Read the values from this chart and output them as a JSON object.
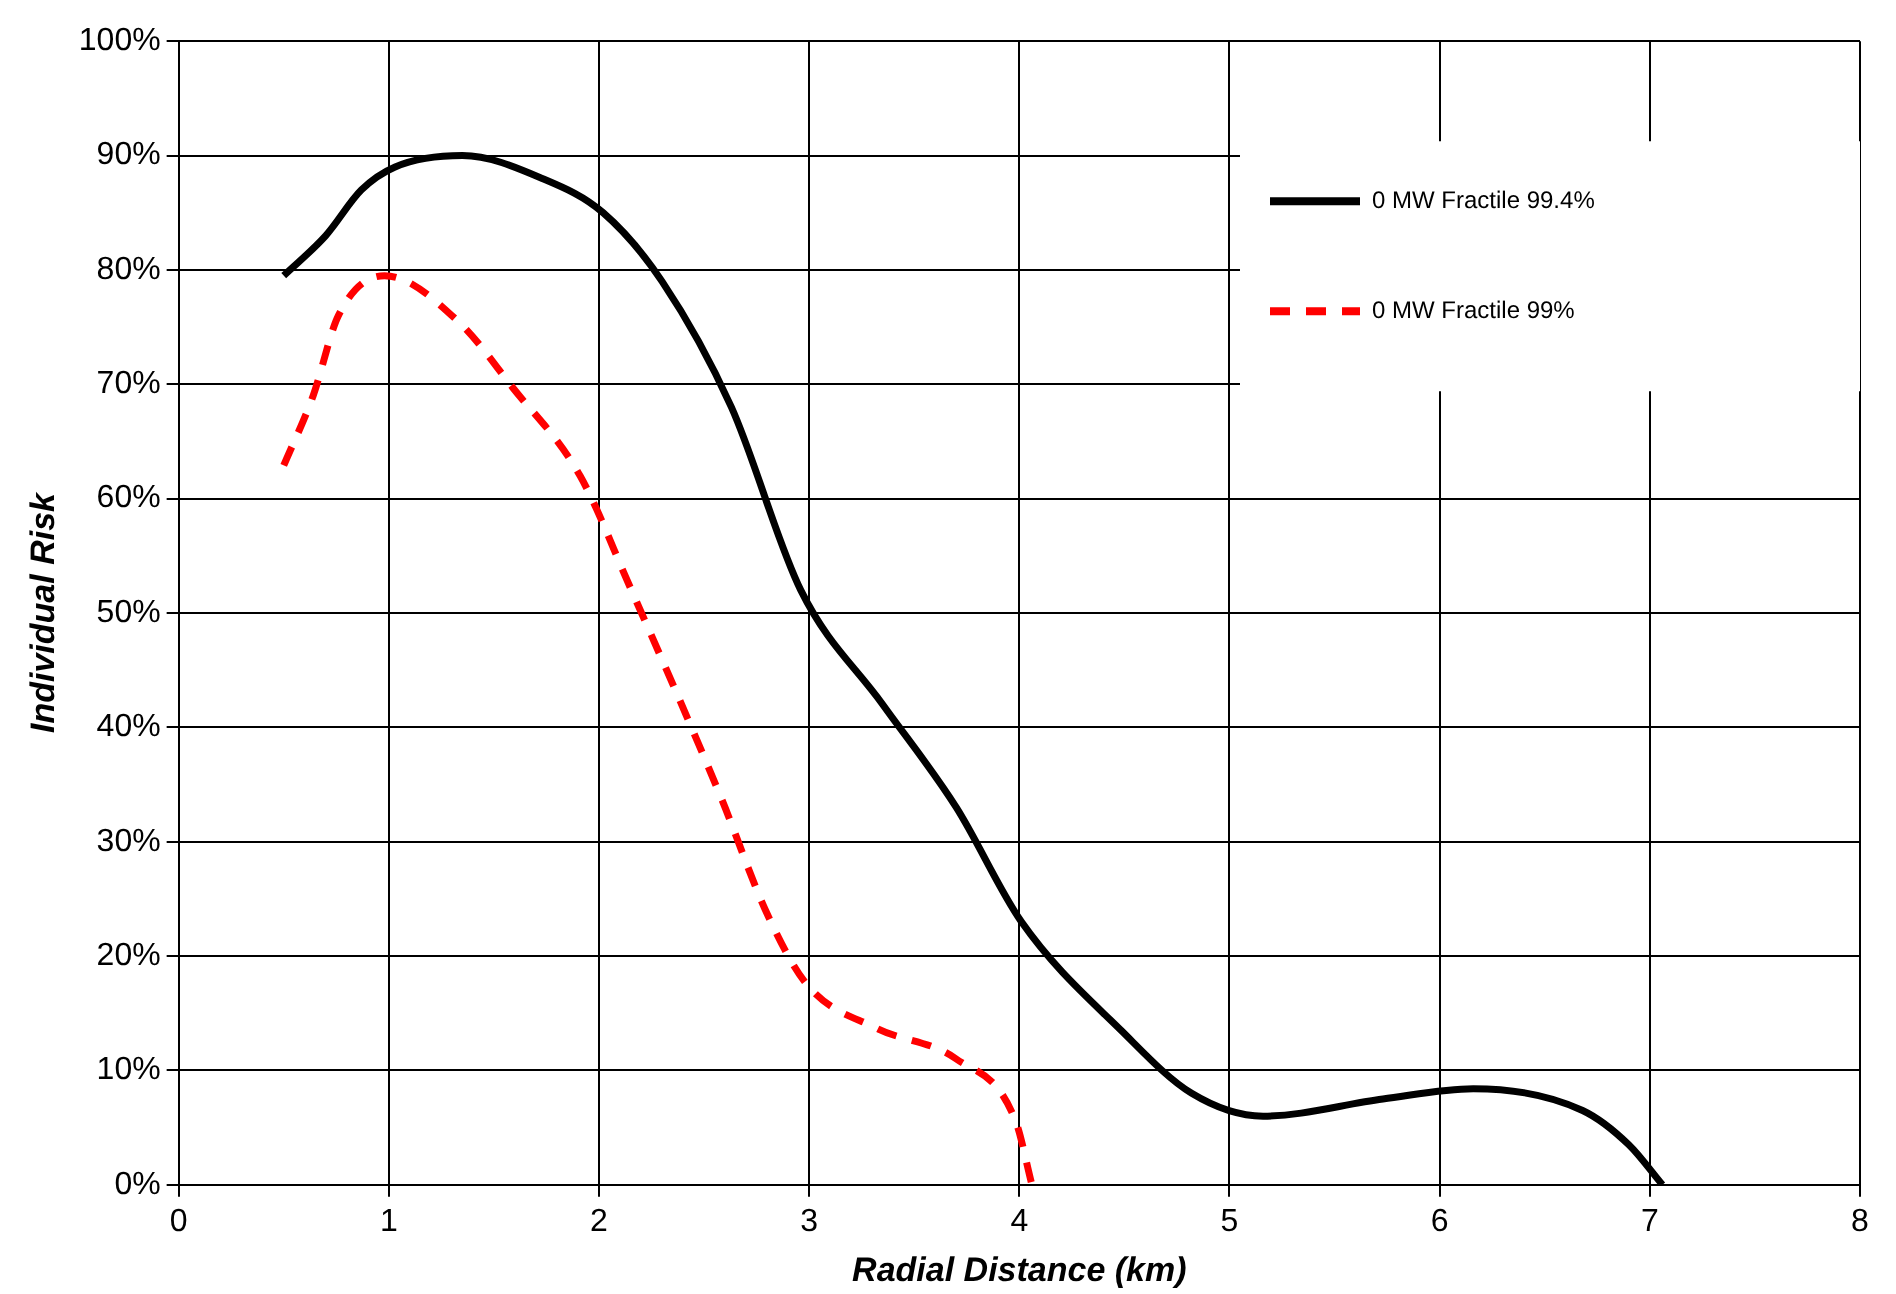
{
  "chart_data": {
    "type": "line",
    "xlabel": "Radial Distance (km)",
    "ylabel": "Individual Risk",
    "xlim": [
      0,
      8
    ],
    "xticks": [
      0,
      1,
      2,
      3,
      4,
      5,
      6,
      7,
      8
    ],
    "ylim": [
      0,
      100
    ],
    "yticks": [
      {
        "value": 0,
        "label": "0%"
      },
      {
        "value": 10,
        "label": "10%"
      },
      {
        "value": 20,
        "label": "20%"
      },
      {
        "value": 30,
        "label": "30%"
      },
      {
        "value": 40,
        "label": "40%"
      },
      {
        "value": 50,
        "label": "50%"
      },
      {
        "value": 60,
        "label": "60%"
      },
      {
        "value": 70,
        "label": "70%"
      },
      {
        "value": 80,
        "label": "80%"
      },
      {
        "value": 90,
        "label": "90%"
      },
      {
        "value": 100,
        "label": "100%"
      }
    ],
    "grid": true,
    "legend": "top right",
    "marker": "none",
    "series": [
      {
        "name": "0 MW Fractile 99.4%",
        "color": "#000000",
        "line_style": "solid",
        "x": [
          0.5,
          0.7,
          0.87,
          1.03,
          1.35,
          1.73,
          2.02,
          2.3,
          2.63,
          2.96,
          3.35,
          3.7,
          4.01,
          4.49,
          4.82,
          5.16,
          5.73,
          6.16,
          6.68,
          6.9,
          7.06
        ],
        "values": [
          79.5,
          83,
          87,
          89,
          90,
          88,
          85,
          79,
          68,
          52,
          42,
          33,
          23,
          13.4,
          8,
          6,
          7.5,
          8.4,
          6.5,
          3.5,
          0
        ]
      },
      {
        "name": "0 MW Fractile 99%",
        "color": "#ff0000",
        "line_style": "dashed",
        "x": [
          0.5,
          0.64,
          0.76,
          0.98,
          1.33,
          1.59,
          1.91,
          2.14,
          2.58,
          2.8,
          2.99,
          3.32,
          3.7,
          3.98,
          4.06
        ],
        "values": [
          62.9,
          69,
          76,
          79.5,
          75.5,
          69.7,
          62,
          52.6,
          33.9,
          23.7,
          17.5,
          13.7,
          11,
          5.7,
          0
        ]
      }
    ]
  }
}
